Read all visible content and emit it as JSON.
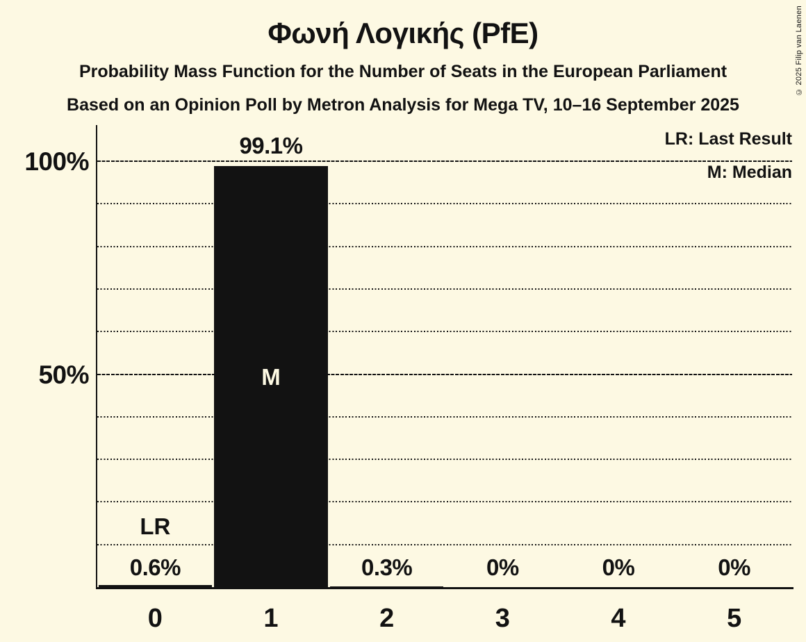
{
  "meta": {
    "copyright": "© 2025 Filip van Laenen"
  },
  "header": {
    "title": "Φωνή Λογικής (PfE)",
    "subtitle1": "Probability Mass Function for the Number of Seats in the European Parliament",
    "subtitle2": "Based on an Opinion Poll by Metron Analysis for Mega TV, 10–16 September 2025"
  },
  "legend": {
    "last_result": "LR: Last Result",
    "median": "M: Median"
  },
  "colors": {
    "background": "#FDF9E3",
    "bar": "#121212",
    "text": "#121212",
    "bar_text": "#FDF9E3"
  },
  "chart_data": {
    "type": "bar",
    "title": "Φωνή Λογικής (PfE)",
    "categories": [
      "0",
      "1",
      "2",
      "3",
      "4",
      "5"
    ],
    "values": [
      0.6,
      99.1,
      0.3,
      0,
      0,
      0
    ],
    "value_labels": [
      "0.6%",
      "99.1%",
      "0.3%",
      "0%",
      "0%",
      "0%"
    ],
    "y_ticks": [
      {
        "value": 100,
        "label": "100%"
      },
      {
        "value": 50,
        "label": "50%"
      }
    ],
    "ylim": [
      0,
      100
    ],
    "gridlines_pct": [
      10,
      20,
      30,
      40,
      50,
      60,
      70,
      80,
      90,
      100
    ],
    "major_gridlines_pct": [
      50,
      100
    ],
    "grid": "horizontal-dotted",
    "legend_position": "top-right",
    "legend_entries": [
      "LR: Last Result",
      "M: Median"
    ],
    "annotations": [
      {
        "category_index": 0,
        "text": "LR",
        "meaning": "Last Result",
        "position": "above-value-label"
      },
      {
        "category_index": 1,
        "text": "M",
        "meaning": "Median",
        "position": "inside-bar"
      }
    ]
  }
}
